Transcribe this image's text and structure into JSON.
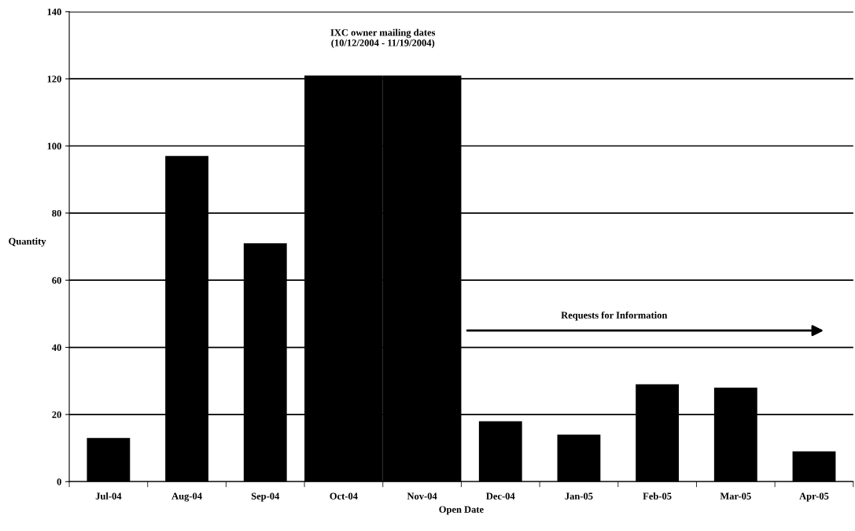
{
  "chart_data": {
    "type": "bar",
    "xlabel": "Open Date",
    "ylabel": "Quantity",
    "categories": [
      "Jul-04",
      "Aug-04",
      "Sep-04",
      "Oct-04",
      "Nov-04",
      "Dec-04",
      "Jan-05",
      "Feb-05",
      "Mar-05",
      "Apr-05"
    ],
    "series": [
      {
        "color": "#000000",
        "values": [
          13,
          97,
          71,
          null,
          null,
          18,
          14,
          29,
          28,
          9
        ]
      },
      {
        "type": "bar",
        "color": "#000000",
        "values": [
          null,
          null,
          null,
          121,
          121,
          null,
          null,
          null,
          null,
          null
        ]
      }
    ],
    "ylim": [
      0,
      140
    ],
    "yticks": [
      0,
      20,
      40,
      60,
      80,
      100,
      120,
      140
    ],
    "grid": "y",
    "annotations": [
      "IXC owner mailing dates\n(10/12/2004 - 11/19/2004)",
      "Requests for Information"
    ]
  }
}
